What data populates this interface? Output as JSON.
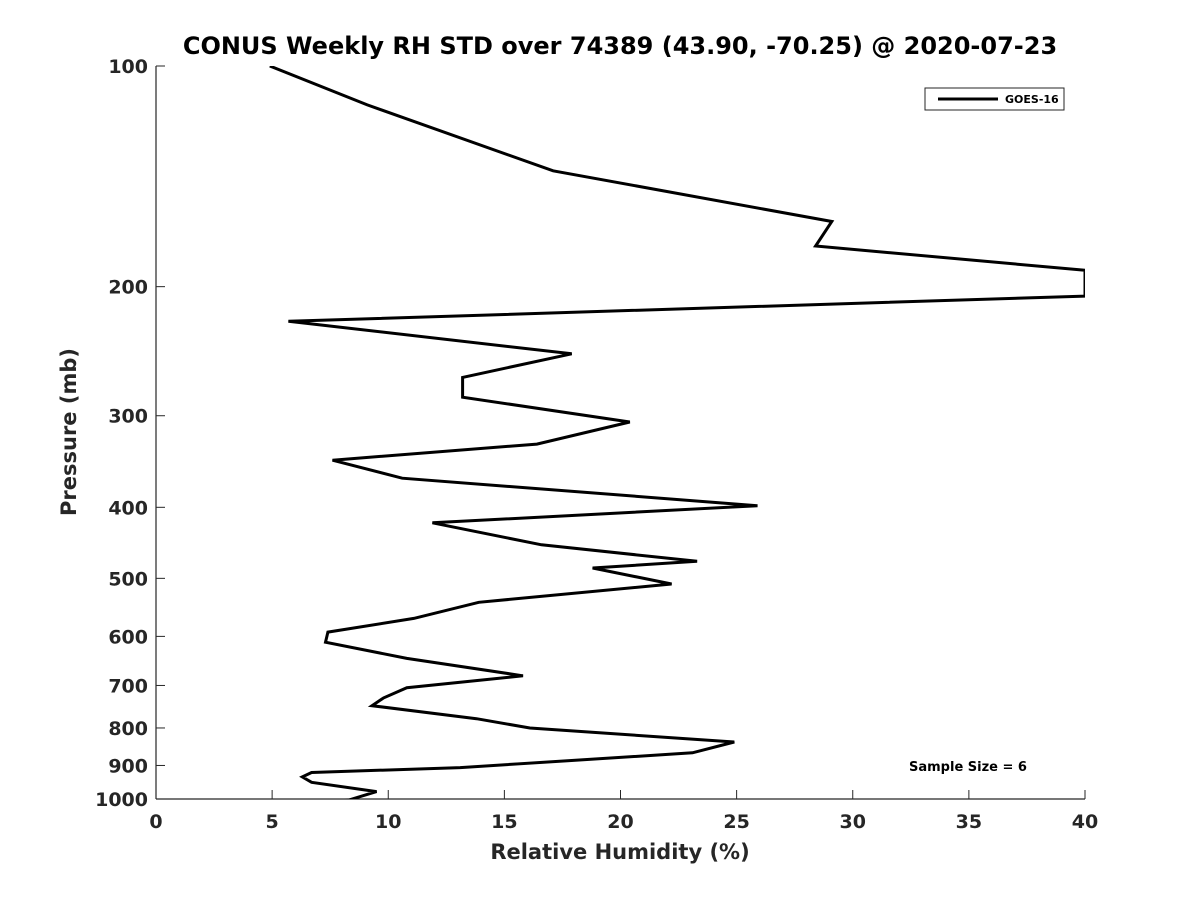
{
  "chart_data": {
    "type": "line",
    "title": "CONUS Weekly RH STD over 74389 (43.90, -70.25) @ 2020-07-23",
    "xlabel": "Relative Humidity (%)",
    "ylabel": "Pressure (mb)",
    "xlim": [
      0,
      40
    ],
    "ylim": [
      100,
      1000
    ],
    "y_scale": "log",
    "y_direction": "reversed",
    "x_ticks": [
      0,
      5,
      10,
      15,
      20,
      25,
      30,
      35,
      40
    ],
    "y_ticks": [
      100,
      200,
      300,
      400,
      500,
      600,
      700,
      800,
      900,
      1000
    ],
    "grid": false,
    "legend_position": "top-right",
    "annotation": "Sample Size = 6",
    "line_color": "#000000",
    "series": [
      {
        "name": "GOES-16",
        "x": [
          4.9,
          9.1,
          17.1,
          29.1,
          28.4,
          40.0,
          40.0,
          5.7,
          17.9,
          13.2,
          13.2,
          20.4,
          16.4,
          7.6,
          10.6,
          25.9,
          11.9,
          16.6,
          23.3,
          18.8,
          22.2,
          13.9,
          11.1,
          7.4,
          7.3,
          10.8,
          15.8,
          10.8,
          9.8,
          9.3,
          13.8,
          16.1,
          24.9,
          23.1,
          13.1,
          6.7,
          6.3,
          6.7,
          9.5,
          8.3,
          5.8,
          7.0,
          6.5,
          6.7,
          16.5
        ],
        "y": [
          100,
          113,
          139,
          163,
          176,
          190,
          206,
          223,
          247,
          266,
          283,
          306,
          328,
          345,
          365,
          398,
          420,
          450,
          474,
          484,
          509,
          539,
          567,
          592,
          611,
          643,
          679,
          705,
          728,
          746,
          777,
          800,
          836,
          865,
          906,
          920,
          933,
          949,
          977,
          1003,
          1025,
          1040,
          1063,
          1065,
          1069
        ]
      }
    ]
  }
}
